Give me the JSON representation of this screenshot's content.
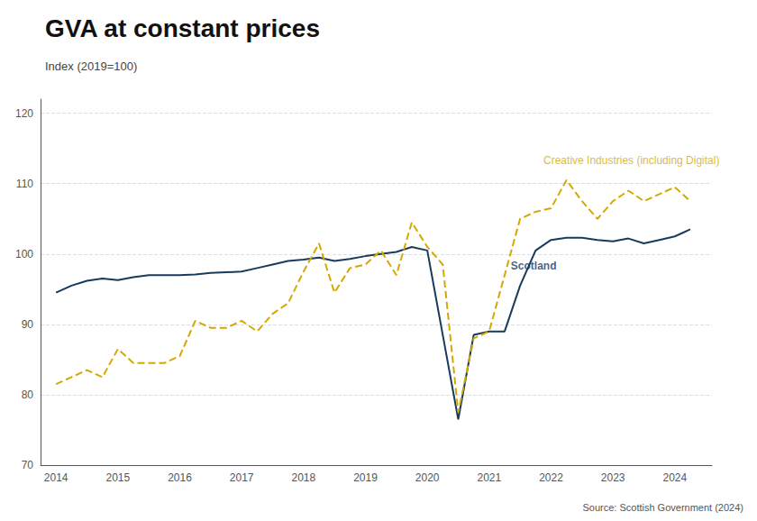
{
  "chart_data": {
    "type": "line",
    "title": "GVA at constant prices",
    "subtitle": "Index (2019=100)",
    "source": "Source: Scottish Government (2024)",
    "xlim": [
      2013.75,
      2024.6
    ],
    "xticks": [
      2014,
      2015,
      2016,
      2017,
      2018,
      2019,
      2020,
      2021,
      2022,
      2023,
      2024
    ],
    "ylim": [
      70,
      122
    ],
    "yticks": [
      70,
      80,
      90,
      100,
      110,
      120
    ],
    "grid": true,
    "series": [
      {
        "name": "Scotland",
        "color": "#1a3a5c",
        "line_style": "solid",
        "x": [
          2014.0,
          2014.25,
          2014.5,
          2014.75,
          2015.0,
          2015.25,
          2015.5,
          2015.75,
          2016.0,
          2016.25,
          2016.5,
          2016.75,
          2017.0,
          2017.25,
          2017.5,
          2017.75,
          2018.0,
          2018.25,
          2018.5,
          2018.75,
          2019.0,
          2019.25,
          2019.5,
          2019.75,
          2020.0,
          2020.25,
          2020.5,
          2020.75,
          2021.0,
          2021.25,
          2021.5,
          2021.75,
          2022.0,
          2022.25,
          2022.5,
          2022.75,
          2023.0,
          2023.25,
          2023.5,
          2023.75,
          2024.0,
          2024.25
        ],
        "values": [
          94.5,
          95.5,
          96.2,
          96.5,
          96.3,
          96.7,
          97.0,
          97.0,
          97.0,
          97.1,
          97.3,
          97.4,
          97.5,
          98.0,
          98.5,
          99.0,
          99.2,
          99.5,
          99.0,
          99.3,
          99.7,
          100.0,
          100.3,
          101.0,
          100.5,
          88.5,
          76.5,
          88.5,
          89.0,
          89.0,
          95.5,
          100.5,
          102.0,
          102.3,
          102.3,
          102.0,
          101.8,
          102.2,
          101.5,
          102.0,
          102.5,
          103.5
        ]
      },
      {
        "name": "Creative Industries (including Digital)",
        "color": "#d4a800",
        "line_style": "dashed",
        "x": [
          2014.0,
          2014.25,
          2014.5,
          2014.75,
          2015.0,
          2015.25,
          2015.5,
          2015.75,
          2016.0,
          2016.25,
          2016.5,
          2016.75,
          2017.0,
          2017.25,
          2017.5,
          2017.75,
          2018.0,
          2018.25,
          2018.5,
          2018.75,
          2019.0,
          2019.25,
          2019.5,
          2019.75,
          2020.0,
          2020.25,
          2020.5,
          2020.75,
          2021.0,
          2021.25,
          2021.5,
          2021.75,
          2022.0,
          2022.25,
          2022.5,
          2022.75,
          2023.0,
          2023.25,
          2023.5,
          2023.75,
          2024.0,
          2024.25
        ],
        "values": [
          81.5,
          82.5,
          83.5,
          82.5,
          86.5,
          84.5,
          84.5,
          84.5,
          85.5,
          90.5,
          89.5,
          89.5,
          90.5,
          89.0,
          91.5,
          93.0,
          97.5,
          101.5,
          94.5,
          98.0,
          98.5,
          100.5,
          97.0,
          104.5,
          101.0,
          98.5,
          77.5,
          88.0,
          89.0,
          97.0,
          105.0,
          106.0,
          106.5,
          110.5,
          107.5,
          105.0,
          107.5,
          109.0,
          107.5,
          108.5,
          109.5,
          107.5
        ]
      }
    ],
    "annotations": [
      {
        "text": "Scotland",
        "x": 2021.35,
        "y": 97.5,
        "color": "#1a3a5c"
      },
      {
        "text": "Creative Industries (including Digital)",
        "x": 2023.3,
        "y": 112.5,
        "color": "#d4a800"
      }
    ]
  }
}
